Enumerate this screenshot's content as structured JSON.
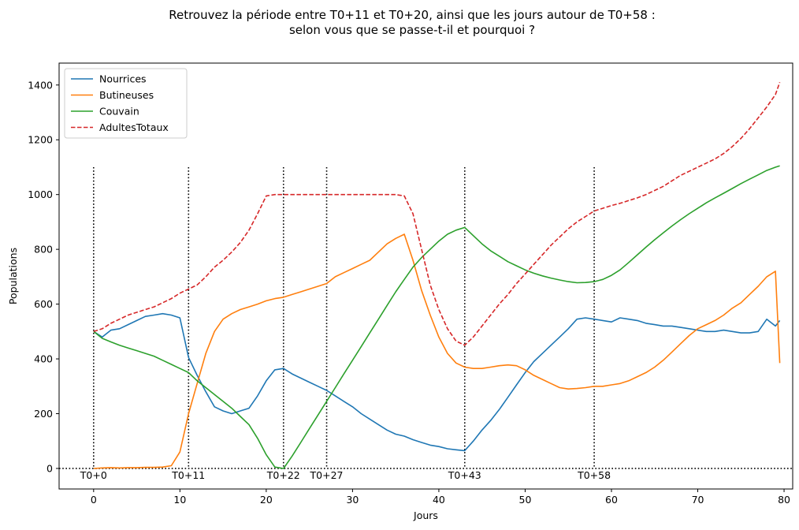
{
  "chart_data": {
    "type": "line",
    "title_line1": "Retrouvez la période entre T0+11 et T0+20, ainsi que les jours autour de T0+58 :",
    "title_line2": "selon vous que se passe-t-il et pourquoi ?",
    "xlabel": "Jours",
    "ylabel": "Populations",
    "xlim": [
      -4,
      81
    ],
    "ylim": [
      -75,
      1480
    ],
    "xticks": [
      0,
      10,
      20,
      30,
      40,
      50,
      60,
      70,
      80
    ],
    "yticks": [
      0,
      200,
      400,
      600,
      800,
      1000,
      1200,
      1400
    ],
    "grid": false,
    "legend_position": "upper-left",
    "vlines": [
      {
        "x": 0,
        "label": "T0+0"
      },
      {
        "x": 11,
        "label": "T0+11"
      },
      {
        "x": 22,
        "label": "T0+22"
      },
      {
        "x": 27,
        "label": "T0+27"
      },
      {
        "x": 43,
        "label": "T0+43"
      },
      {
        "x": 58,
        "label": "T0+58"
      }
    ],
    "vline_top": 1100,
    "hline_y": 0,
    "series": [
      {
        "name": "Nourrices",
        "color": "#1f77b4",
        "style": "solid",
        "x": [
          0,
          1,
          2,
          3,
          4,
          5,
          6,
          7,
          8,
          9,
          10,
          11,
          12,
          13,
          14,
          15,
          16,
          17,
          18,
          19,
          20,
          21,
          22,
          23,
          24,
          25,
          26,
          27,
          28,
          29,
          30,
          31,
          32,
          33,
          34,
          35,
          36,
          37,
          38,
          39,
          40,
          41,
          42,
          43,
          44,
          45,
          46,
          47,
          48,
          49,
          50,
          51,
          52,
          53,
          54,
          55,
          56,
          57,
          58,
          59,
          60,
          61,
          62,
          63,
          64,
          65,
          66,
          67,
          68,
          69,
          70,
          71,
          72,
          73,
          74,
          75,
          76,
          77,
          78,
          79,
          79.5
        ],
        "y": [
          500,
          480,
          505,
          510,
          525,
          540,
          555,
          560,
          565,
          560,
          550,
          405,
          340,
          280,
          225,
          210,
          200,
          210,
          220,
          265,
          320,
          360,
          365,
          345,
          330,
          315,
          300,
          285,
          265,
          245,
          225,
          200,
          180,
          160,
          140,
          125,
          118,
          105,
          95,
          85,
          80,
          72,
          68,
          65,
          100,
          140,
          175,
          215,
          260,
          305,
          350,
          390,
          420,
          450,
          480,
          510,
          545,
          550,
          545,
          540,
          535,
          550,
          545,
          540,
          530,
          525,
          520,
          520,
          515,
          510,
          505,
          500,
          500,
          505,
          500,
          495,
          495,
          500,
          545,
          520,
          540
        ]
      },
      {
        "name": "Butineuses",
        "color": "#ff7f0e",
        "style": "solid",
        "x": [
          0,
          1,
          2,
          3,
          4,
          5,
          6,
          7,
          8,
          9,
          10,
          11,
          12,
          13,
          14,
          15,
          16,
          17,
          18,
          19,
          20,
          21,
          22,
          23,
          24,
          25,
          26,
          27,
          28,
          29,
          30,
          31,
          32,
          33,
          34,
          35,
          36,
          37,
          38,
          39,
          40,
          41,
          42,
          43,
          44,
          45,
          46,
          47,
          48,
          49,
          50,
          51,
          52,
          53,
          54,
          55,
          56,
          57,
          58,
          59,
          60,
          61,
          62,
          63,
          64,
          65,
          66,
          67,
          68,
          69,
          70,
          71,
          72,
          73,
          74,
          75,
          76,
          77,
          78,
          79,
          79.5
        ],
        "y": [
          0,
          2,
          3,
          2,
          3,
          3,
          4,
          4,
          5,
          10,
          60,
          200,
          310,
          420,
          500,
          545,
          565,
          580,
          590,
          600,
          612,
          620,
          625,
          635,
          645,
          655,
          665,
          675,
          700,
          715,
          730,
          745,
          760,
          790,
          820,
          840,
          855,
          760,
          650,
          560,
          480,
          420,
          385,
          370,
          365,
          365,
          370,
          375,
          378,
          375,
          360,
          340,
          325,
          310,
          295,
          290,
          292,
          295,
          300,
          300,
          305,
          310,
          320,
          335,
          350,
          370,
          395,
          425,
          455,
          485,
          510,
          525,
          540,
          560,
          585,
          605,
          635,
          665,
          700,
          720,
          385
        ]
      },
      {
        "name": "Couvain",
        "color": "#2ca02c",
        "style": "solid",
        "x": [
          0,
          1,
          2,
          3,
          4,
          5,
          6,
          7,
          8,
          9,
          10,
          11,
          12,
          13,
          14,
          15,
          16,
          17,
          18,
          19,
          20,
          21,
          22,
          23,
          24,
          25,
          26,
          27,
          28,
          29,
          30,
          31,
          32,
          33,
          34,
          35,
          36,
          37,
          38,
          39,
          40,
          41,
          42,
          43,
          44,
          45,
          46,
          47,
          48,
          49,
          50,
          51,
          52,
          53,
          54,
          55,
          56,
          57,
          58,
          59,
          60,
          61,
          62,
          63,
          64,
          65,
          66,
          67,
          68,
          69,
          70,
          71,
          72,
          73,
          74,
          75,
          76,
          77,
          78,
          79,
          79.5
        ],
        "y": [
          500,
          475,
          462,
          450,
          440,
          430,
          420,
          410,
          395,
          380,
          365,
          350,
          320,
          295,
          270,
          245,
          220,
          190,
          160,
          110,
          50,
          5,
          0,
          45,
          95,
          145,
          195,
          245,
          295,
          345,
          395,
          445,
          495,
          545,
          595,
          645,
          690,
          735,
          770,
          800,
          830,
          855,
          870,
          880,
          850,
          820,
          795,
          775,
          755,
          740,
          725,
          713,
          703,
          695,
          688,
          682,
          678,
          679,
          682,
          690,
          705,
          725,
          752,
          780,
          808,
          835,
          860,
          885,
          908,
          930,
          950,
          970,
          988,
          1005,
          1022,
          1040,
          1056,
          1072,
          1088,
          1100,
          1105
        ]
      },
      {
        "name": "AdultesTotaux",
        "color": "#d62728",
        "style": "dashed",
        "x": [
          0,
          1,
          2,
          3,
          4,
          5,
          6,
          7,
          8,
          9,
          10,
          11,
          12,
          13,
          14,
          15,
          16,
          17,
          18,
          19,
          20,
          21,
          22,
          23,
          24,
          25,
          26,
          27,
          28,
          29,
          30,
          31,
          32,
          33,
          34,
          35,
          36,
          37,
          38,
          39,
          40,
          41,
          42,
          43,
          44,
          45,
          46,
          47,
          48,
          49,
          50,
          51,
          52,
          53,
          54,
          55,
          56,
          57,
          58,
          59,
          60,
          61,
          62,
          63,
          64,
          65,
          66,
          67,
          68,
          69,
          70,
          71,
          72,
          73,
          74,
          75,
          76,
          77,
          78,
          79,
          79.5
        ],
        "y": [
          500,
          510,
          530,
          545,
          560,
          570,
          580,
          590,
          605,
          620,
          640,
          655,
          670,
          700,
          735,
          760,
          790,
          825,
          870,
          930,
          995,
          1000,
          1000,
          1000,
          1000,
          1000,
          1000,
          1000,
          1000,
          1000,
          1000,
          1000,
          1000,
          1000,
          1000,
          1000,
          995,
          930,
          800,
          670,
          580,
          510,
          465,
          450,
          480,
          520,
          560,
          600,
          635,
          675,
          710,
          745,
          780,
          815,
          845,
          875,
          900,
          920,
          940,
          950,
          960,
          968,
          978,
          988,
          1000,
          1015,
          1030,
          1050,
          1070,
          1085,
          1100,
          1115,
          1130,
          1150,
          1175,
          1205,
          1240,
          1280,
          1320,
          1365,
          1410
        ]
      }
    ]
  }
}
